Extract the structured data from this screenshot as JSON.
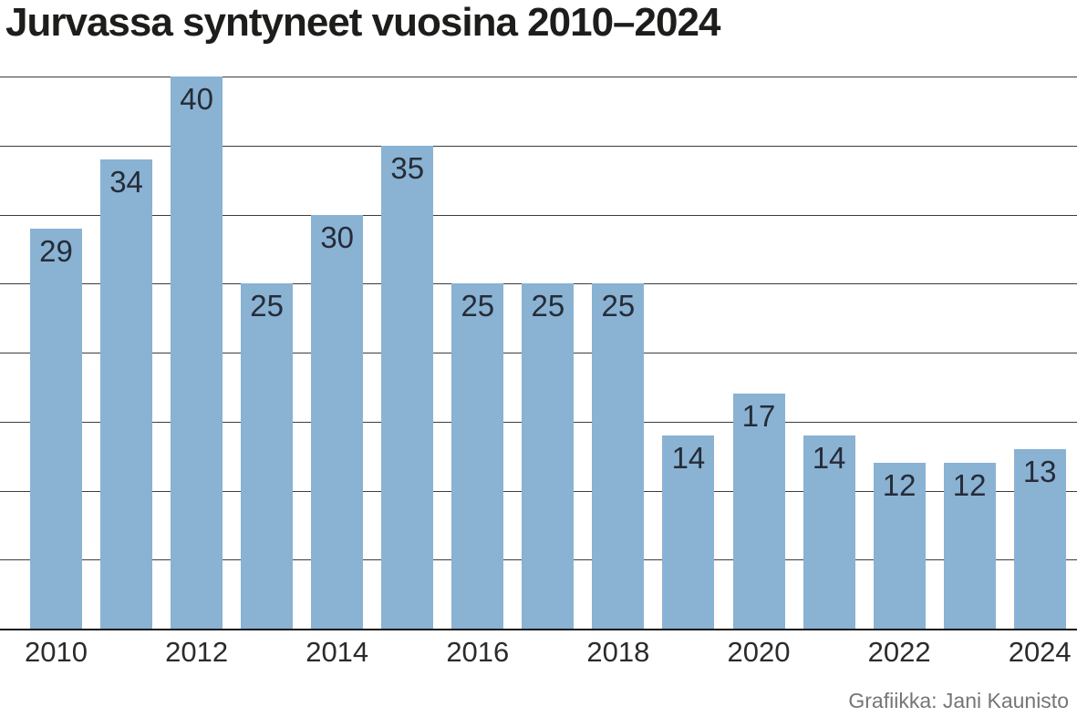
{
  "chart": {
    "title": "Jurvassa syntyneet vuosina 2010–2024",
    "credit": "Grafiikka: Jani Kaunisto"
  },
  "chart_data": {
    "type": "bar",
    "title": "Jurvassa syntyneet vuosina 2010–2024",
    "categories": [
      "2010",
      "2011",
      "2012",
      "2013",
      "2014",
      "2015",
      "2016",
      "2017",
      "2018",
      "2019",
      "2020",
      "2021",
      "2022",
      "2023",
      "2024"
    ],
    "values": [
      29,
      34,
      40,
      25,
      30,
      35,
      25,
      25,
      25,
      14,
      17,
      14,
      12,
      12,
      13
    ],
    "value_labels_on_bars": true,
    "x_tick_labels": [
      "2010",
      "2012",
      "2014",
      "2016",
      "2018",
      "2020",
      "2022",
      "2024"
    ],
    "xlabel": "",
    "ylabel": "",
    "ylim": [
      0,
      40
    ],
    "gridline_step": 5,
    "grid": "horizontal-only",
    "y_axis_labels_visible": false,
    "legend": "none",
    "bar_color": "#8ab2d3",
    "value_label_color": "#252c38",
    "gridline_color": "#3c3c3c",
    "baseline_color": "#161616",
    "credit": "Grafiikka: Jani Kaunisto"
  }
}
